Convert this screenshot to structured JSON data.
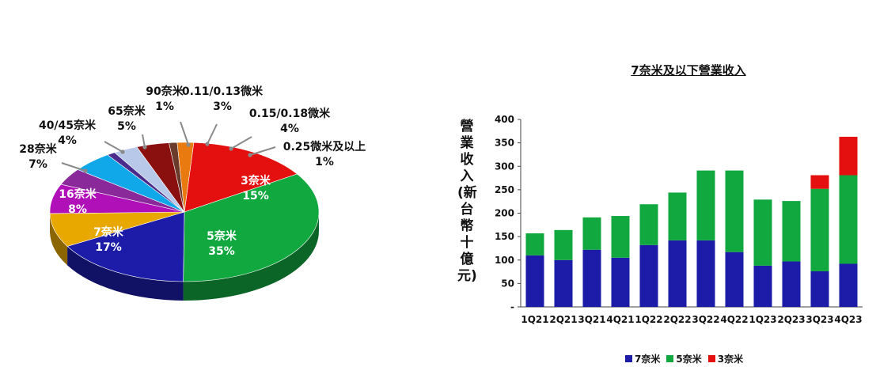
{
  "chart_data": [
    {
      "type": "pie",
      "slices": [
        {
          "line1": "3奈米",
          "line2": "15%",
          "value": 15,
          "color": "#e41010"
        },
        {
          "line1": "5奈米",
          "line2": "35%",
          "value": 35,
          "color": "#12a840"
        },
        {
          "line1": "7奈米",
          "line2": "17%",
          "value": 17,
          "color": "#1c1ca8"
        },
        {
          "line1": "16奈米",
          "line2": "8%",
          "value": 8,
          "color": "#e8a800"
        },
        {
          "line1": "28奈米",
          "line2": "7%",
          "value": 7,
          "color": "#b010b8"
        },
        {
          "line1": "40/45奈米",
          "line2": "4%",
          "value": 4,
          "color": "#8a2a9a"
        },
        {
          "line1": "65奈米",
          "line2": "5%",
          "value": 5,
          "color": "#10a8e8"
        },
        {
          "line1": "90奈米",
          "line2": "1%",
          "value": 1,
          "color": "#4a2a8a"
        },
        {
          "line1": "0.11/0.13微米",
          "line2": "3%",
          "value": 3,
          "color": "#b8c8e8"
        },
        {
          "line1": "0.15/0.18微米",
          "line2": "4%",
          "value": 4,
          "color": "#8a1010"
        },
        {
          "line1": "0.25微米及以上",
          "line2": "1%",
          "value": 1,
          "color": "#6a3a2a"
        }
      ],
      "extra_slice_color": "#e87a10"
    },
    {
      "type": "bar",
      "stacked": true,
      "title": "7奈米及以下營業收入",
      "ylabel": "營業收入(新台幣十億元)",
      "ylim": [
        0,
        400
      ],
      "yticks": [
        "-",
        "50",
        "100",
        "150",
        "200",
        "250",
        "300",
        "350",
        "400"
      ],
      "categories": [
        "1Q21",
        "2Q21",
        "3Q21",
        "4Q21",
        "1Q22",
        "2Q22",
        "3Q22",
        "4Q22",
        "1Q23",
        "2Q23",
        "3Q23",
        "4Q23"
      ],
      "series": [
        {
          "name": "7奈米",
          "color": "#1c1ca8",
          "values": [
            110,
            100,
            122,
            105,
            132,
            142,
            142,
            117,
            88,
            97,
            76,
            92
          ]
        },
        {
          "name": "5奈米",
          "color": "#12a840",
          "values": [
            47,
            64,
            69,
            89,
            87,
            102,
            149,
            174,
            141,
            129,
            176,
            189
          ]
        },
        {
          "name": "3奈米",
          "color": "#e41010",
          "values": [
            0,
            0,
            0,
            0,
            0,
            0,
            0,
            0,
            0,
            0,
            29,
            82
          ]
        }
      ]
    }
  ]
}
